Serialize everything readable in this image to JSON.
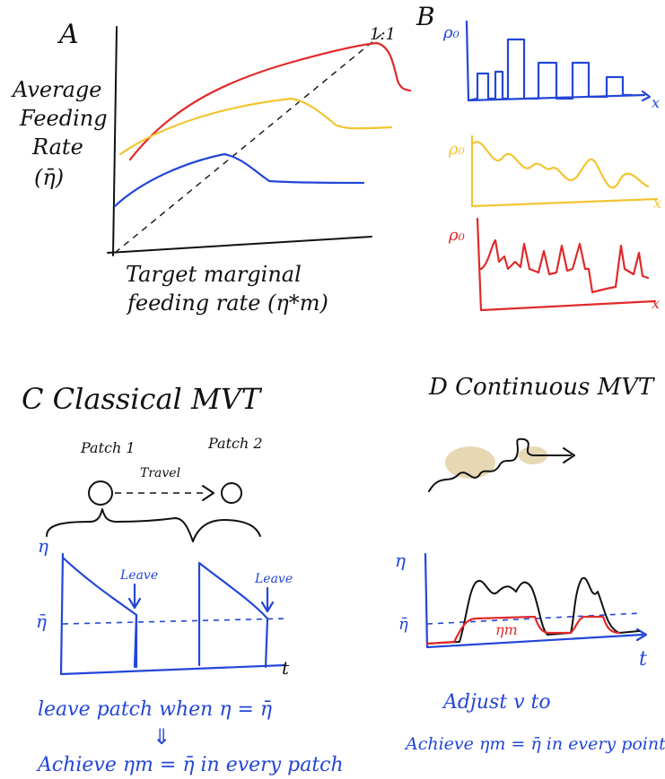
{
  "panelA": {
    "letter": "A",
    "ylabel_lines": [
      "Average",
      "Feeding",
      "Rate",
      "(η̄)"
    ],
    "xlabel_lines": [
      "Target marginal",
      "feeding rate (η*m)"
    ],
    "identity_label": "1:1",
    "colors": {
      "red": "#e02a2a",
      "yellow": "#f2c531",
      "blue": "#2346d8"
    }
  },
  "panelB": {
    "letter": "B",
    "blue_ylabel": "ρ₀",
    "yellow_ylabel": "ρ₀",
    "red_ylabel": "ρ₀",
    "xlabel": "x"
  },
  "panelC": {
    "title": "C  Classical MVT",
    "patch1": "Patch 1",
    "patch2": "Patch 2",
    "travel": "Travel",
    "y_axis": "η",
    "mean_label": "η̄",
    "leave1": "Leave",
    "leave2": "Leave",
    "x_axis": "t",
    "rule": "leave patch when η = η̄",
    "implies": "⇓",
    "achieve": "Achieve ηm = η̄ in every patch"
  },
  "panelD": {
    "title": "D  Continuous MVT",
    "y_axis": "η",
    "mean_label": "η̄",
    "eta_m": "ηm",
    "x_axis": "t",
    "rule": "Adjust v to",
    "achieve": "Achieve ηm = η̄ in every point"
  }
}
